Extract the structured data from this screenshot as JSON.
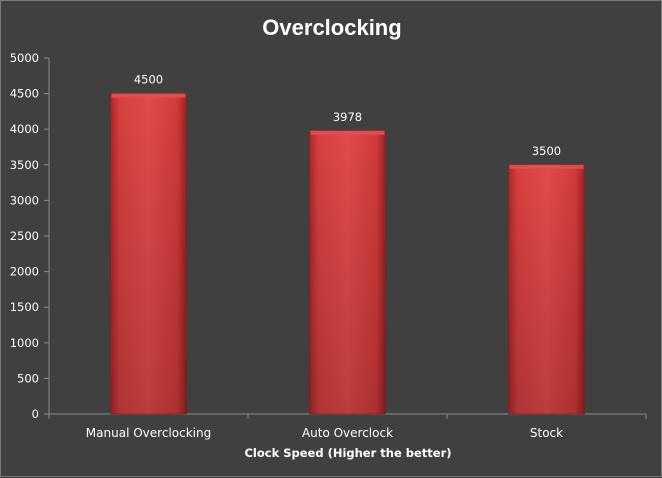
{
  "chart_data": {
    "type": "bar",
    "title": "Overclocking",
    "xlabel": "Clock Speed (Higher the better)",
    "ylabel": "",
    "categories": [
      "Manual Overclocking",
      "Auto Overclock",
      "Stock"
    ],
    "values": [
      4500,
      3978,
      3500
    ],
    "data_labels": [
      "4500",
      "3978",
      "3500"
    ],
    "ylim": [
      0,
      5000
    ],
    "y_ticks": [
      0,
      500,
      1000,
      1500,
      2000,
      2500,
      3000,
      3500,
      4000,
      4500,
      5000
    ],
    "grid": false,
    "legend": "none",
    "colors": {
      "background": "#404040",
      "bar": "#d33c3c",
      "bar_highlight": "#e84e4e",
      "bar_shadow": "#8e2020",
      "axis": "#8a8a8a",
      "text": "#ffffff"
    }
  }
}
